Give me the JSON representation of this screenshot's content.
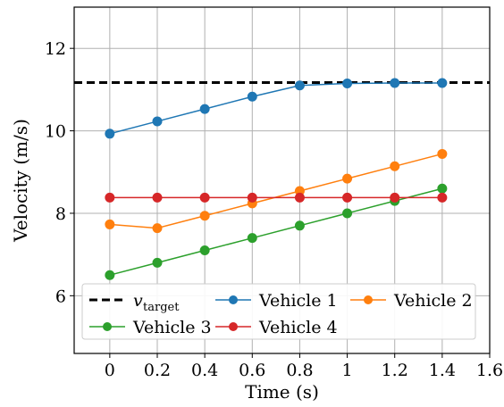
{
  "chart_data": {
    "type": "line",
    "xlabel": "Time (s)",
    "ylabel": "Velocity (m/s)",
    "xlim": [
      -0.15,
      1.6
    ],
    "ylim": [
      4.6,
      13.0
    ],
    "xticks": [
      0,
      0.2,
      0.4,
      0.6,
      0.8,
      1,
      1.2,
      1.4,
      1.6
    ],
    "xtick_labels": [
      "0",
      "0.2",
      "0.4",
      "0.6",
      "0.8",
      "1",
      "1.2",
      "1.4",
      "1.6"
    ],
    "yticks": [
      6,
      8,
      10,
      12
    ],
    "ytick_labels": [
      "6",
      "8",
      "10",
      "12"
    ],
    "grid": true,
    "legend_position": "bottom-center",
    "target": {
      "name": "v",
      "subscript": "target",
      "value": 11.17,
      "color": "#000000",
      "style": "dashed"
    },
    "x": [
      0,
      0.2,
      0.4,
      0.6,
      0.8,
      1.0,
      1.2,
      1.4
    ],
    "series": [
      {
        "name": "Vehicle 1",
        "color": "#1f77b4",
        "values": [
          9.93,
          10.23,
          10.53,
          10.83,
          11.1,
          11.15,
          11.16,
          11.16
        ]
      },
      {
        "name": "Vehicle 2",
        "color": "#ff7f0e",
        "values": [
          7.73,
          7.64,
          7.94,
          8.24,
          8.54,
          8.84,
          9.14,
          9.44
        ]
      },
      {
        "name": "Vehicle 3",
        "color": "#2ca02c",
        "values": [
          6.5,
          6.8,
          7.1,
          7.4,
          7.7,
          8.0,
          8.3,
          8.6
        ]
      },
      {
        "name": "Vehicle 4",
        "color": "#d62728",
        "values": [
          8.38,
          8.38,
          8.38,
          8.38,
          8.38,
          8.38,
          8.38,
          8.38
        ]
      }
    ]
  }
}
